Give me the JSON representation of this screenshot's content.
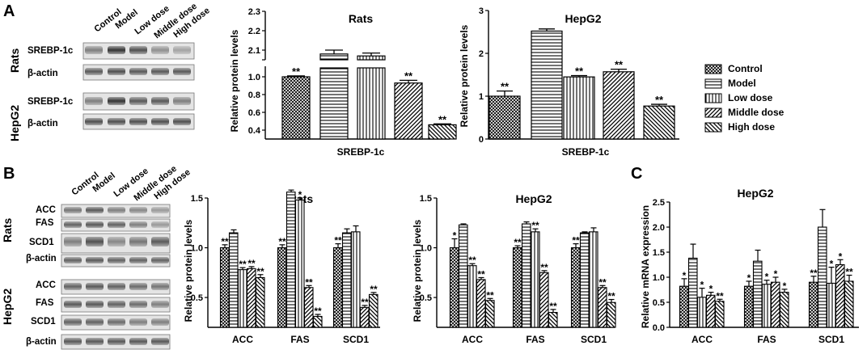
{
  "panel_letters": {
    "a": "A",
    "b": "B",
    "c": "C"
  },
  "blot_a": {
    "columns": [
      "Control",
      "Model",
      "Low dose",
      "Middle dose",
      "High dose"
    ],
    "group_labels": [
      "Rats",
      "HepG2"
    ],
    "rows": [
      "SREBP-1c",
      "β-actin",
      "SREBP-1c",
      "β-actin"
    ]
  },
  "blot_b": {
    "columns": [
      "Control",
      "Model",
      "Low dose",
      "Middle dose",
      "High dose"
    ],
    "group_labels": [
      "Rats",
      "HepG2"
    ],
    "rows": [
      "ACC",
      "FAS",
      "SCD1",
      "β-actin",
      "ACC",
      "FAS",
      "SCD1",
      "β-actin"
    ]
  },
  "legend": {
    "title": "",
    "entries": [
      "Control",
      "Model",
      "Low dose",
      "Middle dose",
      "High dose"
    ]
  },
  "chart_data": [
    {
      "id": "a_rats",
      "type": "bar",
      "title": "Rats",
      "xlabel": "SREBP-1c",
      "ylabel": "Relative protein levels",
      "axis_break": true,
      "ylim_lower": [
        0.3,
        1.1
      ],
      "yticks_lower": [
        "0.4",
        "0.6",
        "0.8",
        "1.0"
      ],
      "ylim_upper": [
        2.05,
        2.3
      ],
      "yticks_upper": [
        "2.1",
        "2.2",
        "2.3"
      ],
      "series_names": [
        "Control",
        "Model",
        "Low dose",
        "Middle dose",
        "High dose"
      ],
      "values": [
        1.0,
        2.08,
        2.07,
        0.93,
        0.46
      ],
      "errors": [
        0.01,
        0.02,
        0.015,
        0.03,
        0.01
      ],
      "annotations": [
        "**",
        "",
        "",
        "**",
        "**"
      ]
    },
    {
      "id": "a_hepg2",
      "type": "bar",
      "title": "HepG2",
      "xlabel": "SREBP-1c",
      "ylabel": "Relative protein levels",
      "ylim": [
        0,
        3
      ],
      "yticks": [
        "0",
        "1",
        "2",
        "3"
      ],
      "series_names": [
        "Control",
        "Model",
        "Low dose",
        "Middle dose",
        "High dose"
      ],
      "values": [
        1.0,
        2.52,
        1.45,
        1.57,
        0.77
      ],
      "errors": [
        0.12,
        0.05,
        0.03,
        0.06,
        0.04
      ],
      "annotations": [
        "**",
        "",
        "**",
        "**",
        "**"
      ]
    },
    {
      "id": "b_rats",
      "type": "bar",
      "title": "Rats",
      "xlabel": "",
      "ylabel": "Relative protein levels",
      "ylim": [
        0.2,
        1.5
      ],
      "yticks": [
        "0.5",
        "1.0",
        "1.5"
      ],
      "categories": [
        "ACC",
        "FAS",
        "SCD1"
      ],
      "series": [
        {
          "name": "Control",
          "values": [
            1.0,
            1.0,
            1.0
          ],
          "errors": [
            0.03,
            0.03,
            0.04
          ],
          "annotations": [
            "**",
            "**",
            "**"
          ]
        },
        {
          "name": "Model",
          "values": [
            1.15,
            1.56,
            1.15
          ],
          "errors": [
            0.03,
            0.02,
            0.04
          ],
          "annotations": [
            "",
            "",
            ""
          ]
        },
        {
          "name": "Low dose",
          "values": [
            0.78,
            1.48,
            1.16
          ],
          "errors": [
            0.02,
            0.02,
            0.06
          ],
          "annotations": [
            "**",
            "*",
            ""
          ]
        },
        {
          "name": "Middle dose",
          "values": [
            0.79,
            0.6,
            0.4
          ],
          "errors": [
            0.02,
            0.02,
            0.02
          ],
          "annotations": [
            "**",
            "**",
            "**"
          ]
        },
        {
          "name": "High dose",
          "values": [
            0.7,
            0.31,
            0.53
          ],
          "errors": [
            0.03,
            0.02,
            0.02
          ],
          "annotations": [
            "**",
            "**",
            "**"
          ]
        }
      ]
    },
    {
      "id": "b_hepg2",
      "type": "bar",
      "title": "HepG2",
      "xlabel": "",
      "ylabel": "Relative protein levels",
      "ylim": [
        0.2,
        1.5
      ],
      "yticks": [
        "0.5",
        "1.0",
        "1.5"
      ],
      "categories": [
        "ACC",
        "FAS",
        "SCD1"
      ],
      "series": [
        {
          "name": "Control",
          "values": [
            1.0,
            1.0,
            1.0
          ],
          "errors": [
            0.09,
            0.02,
            0.04
          ],
          "annotations": [
            "*",
            "**",
            "**"
          ]
        },
        {
          "name": "Model",
          "values": [
            1.23,
            1.24,
            1.15
          ],
          "errors": [
            0.01,
            0.02,
            0.01
          ],
          "annotations": [
            "",
            "",
            ""
          ]
        },
        {
          "name": "Low dose",
          "values": [
            0.82,
            1.16,
            1.16
          ],
          "errors": [
            0.02,
            0.03,
            0.04
          ],
          "annotations": [
            "**",
            "**",
            ""
          ]
        },
        {
          "name": "Middle dose",
          "values": [
            0.68,
            0.75,
            0.6
          ],
          "errors": [
            0.02,
            0.02,
            0.02
          ],
          "annotations": [
            "**",
            "**",
            "**"
          ]
        },
        {
          "name": "High dose",
          "values": [
            0.47,
            0.35,
            0.45
          ],
          "errors": [
            0.02,
            0.03,
            0.03
          ],
          "annotations": [
            "**",
            "**",
            "**"
          ]
        }
      ]
    },
    {
      "id": "c_hepg2",
      "type": "bar",
      "title": "HepG2",
      "xlabel": "",
      "ylabel": "Relative mRNA expression",
      "ylim": [
        0,
        2.5
      ],
      "yticks": [
        "0.0",
        "0.5",
        "1.0",
        "1.5",
        "2.0",
        "2.5"
      ],
      "categories": [
        "ACC",
        "FAS",
        "SCD1"
      ],
      "series": [
        {
          "name": "Control",
          "values": [
            0.82,
            0.82,
            0.9
          ],
          "errors": [
            0.15,
            0.1,
            0.12
          ],
          "annotations": [
            "*",
            "*",
            "**"
          ]
        },
        {
          "name": "Model",
          "values": [
            1.38,
            1.32,
            2.0
          ],
          "errors": [
            0.28,
            0.22,
            0.35
          ],
          "annotations": [
            "",
            "",
            ""
          ]
        },
        {
          "name": "Low dose",
          "values": [
            0.6,
            0.86,
            0.88
          ],
          "errors": [
            0.18,
            0.08,
            0.32
          ],
          "annotations": [
            "*",
            "*",
            "*"
          ]
        },
        {
          "name": "Middle dose",
          "values": [
            0.64,
            0.9,
            1.25
          ],
          "errors": [
            0.06,
            0.1,
            0.1
          ],
          "annotations": [
            "*",
            "*",
            "*"
          ]
        },
        {
          "name": "High dose",
          "values": [
            0.52,
            0.7,
            0.92
          ],
          "errors": [
            0.04,
            0.06,
            0.12
          ],
          "annotations": [
            "**",
            "*",
            "**"
          ]
        }
      ]
    }
  ]
}
